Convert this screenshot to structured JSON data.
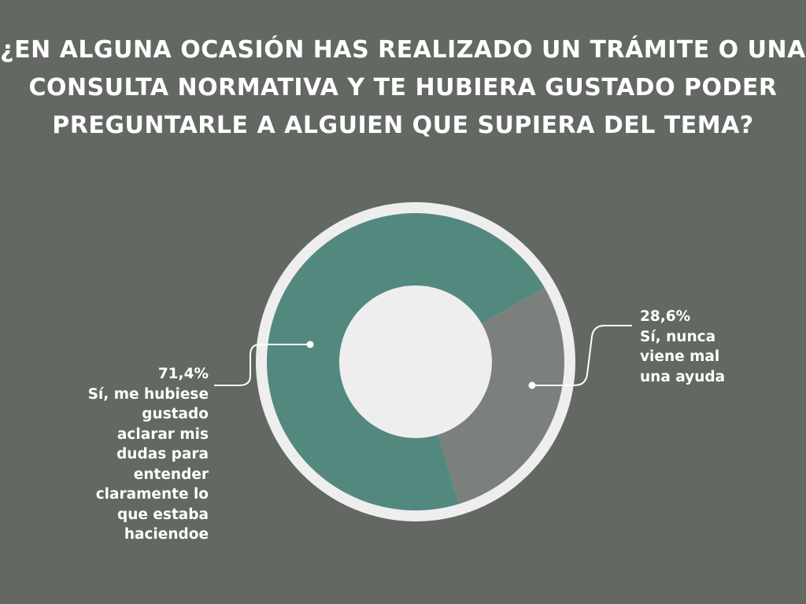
{
  "title_lines": [
    "¿EN ALGUNA OCASIÓN HAS REALIZADO UN TRÁMITE O UNA",
    "CONSULTA NORMATIVA Y TE HUBIERA GUSTADO PODER",
    "PREGUNTARLE A ALGUIEN QUE SUPIERA DEL TEMA?"
  ],
  "chart_data": {
    "type": "pie",
    "variant": "donut",
    "title": "¿EN ALGUNA OCASIÓN HAS REALIZADO UN TRÁMITE O UNA CONSULTA NORMATIVA Y TE HUBIERA GUSTADO PODER PREGUNTARLE A ALGUIEN QUE SUPIERA DEL TEMA?",
    "slices": [
      {
        "value": 71.4,
        "value_label": "71,4%",
        "label_lines": [
          "Sí, me hubiese",
          "gustado",
          "aclarar mis",
          "dudas para",
          "entender",
          "claramente lo",
          "que estaba",
          "haciendoe"
        ],
        "color": "#53887f"
      },
      {
        "value": 28.6,
        "value_label": "28,6%",
        "label_lines": [
          "Sí, nunca",
          "viene mal",
          "una ayuda"
        ],
        "color": "#7b807c"
      }
    ],
    "colors": {
      "background": "#636863",
      "ring": "#eeeeee",
      "hole": "#eeeeee"
    }
  }
}
